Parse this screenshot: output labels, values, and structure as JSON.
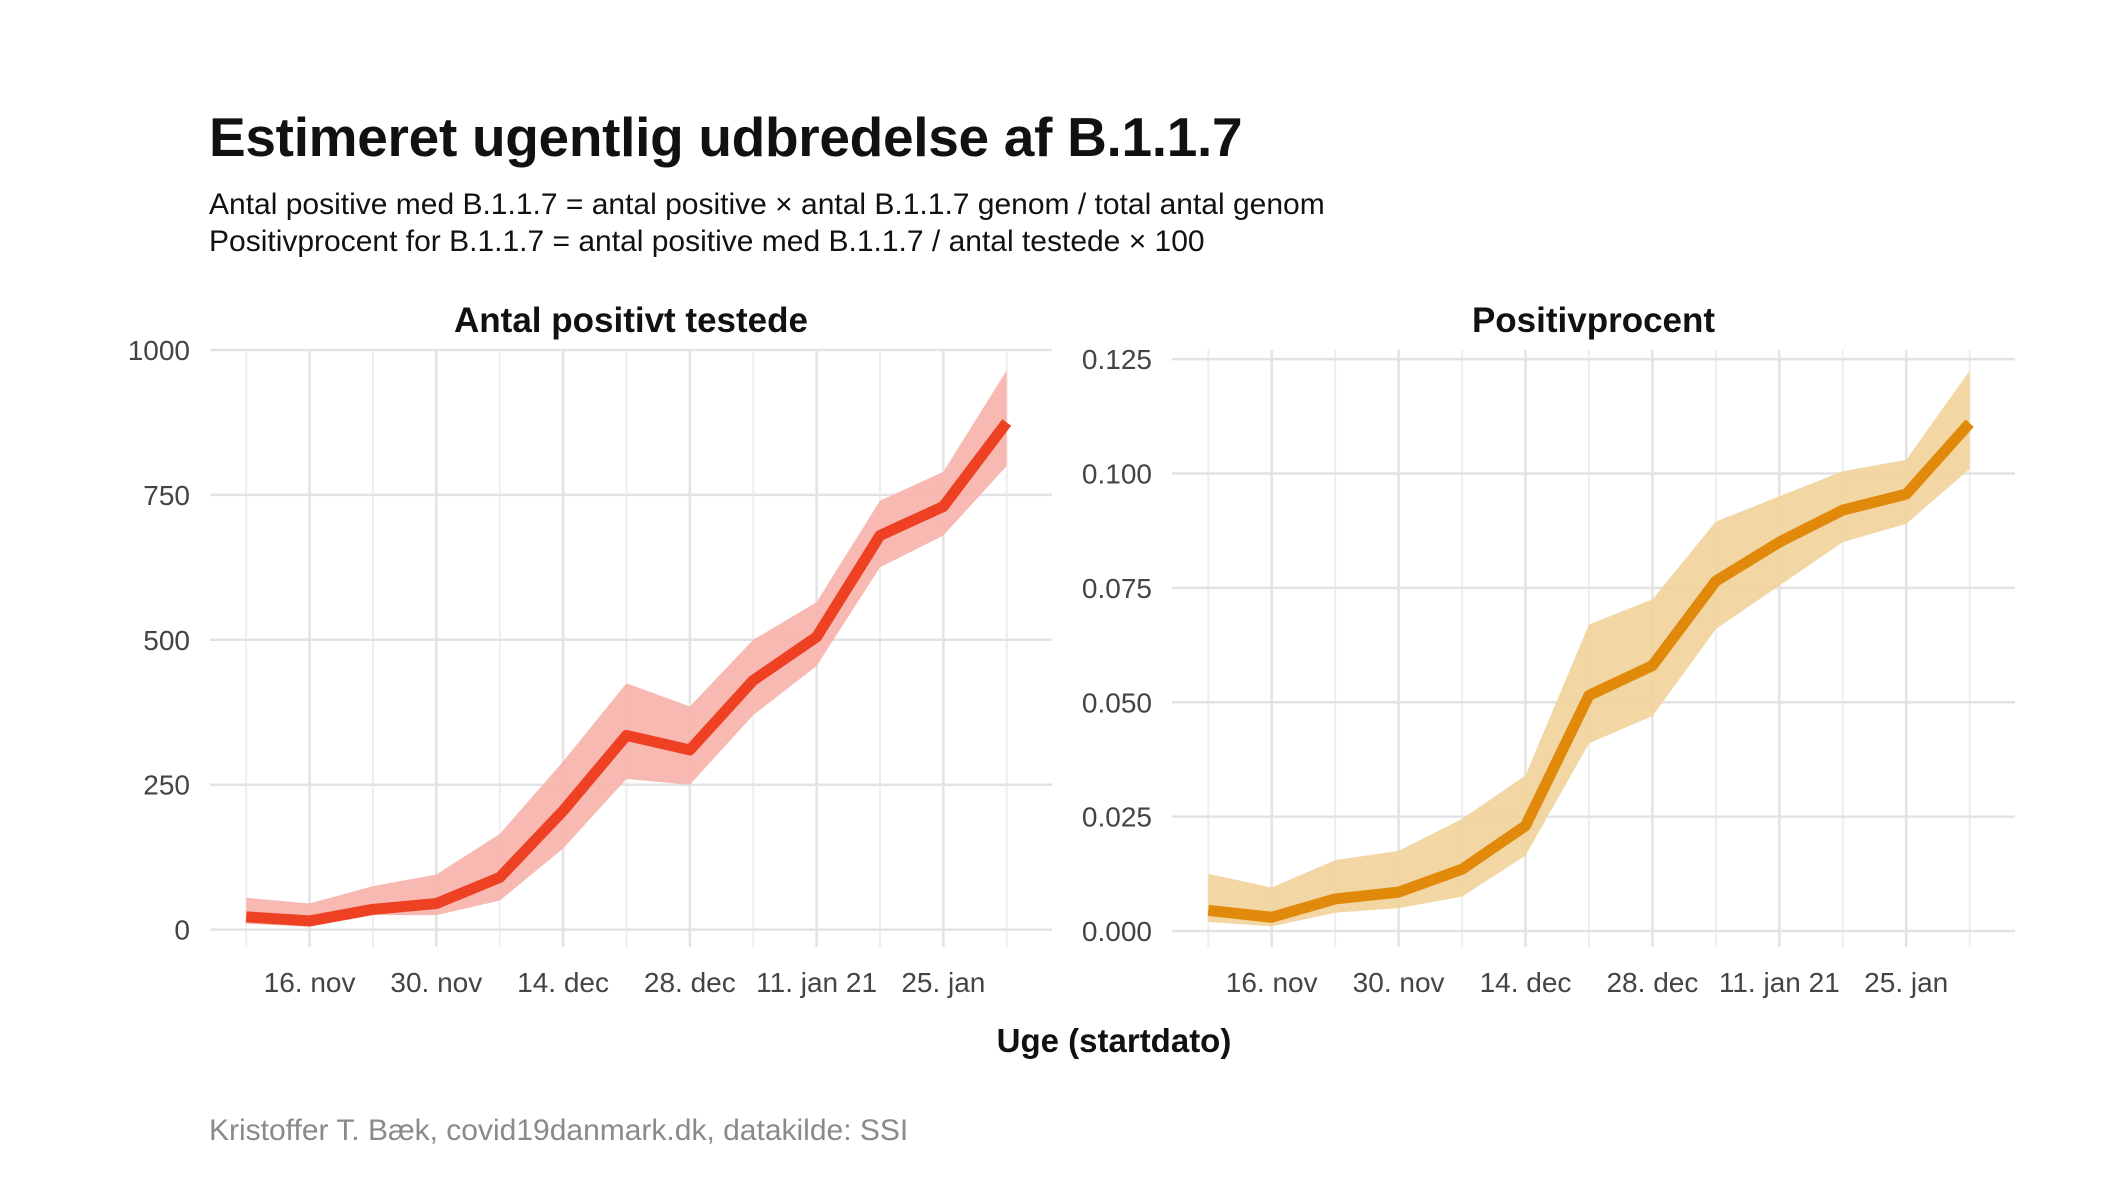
{
  "title": "Estimeret ugentlig udbredelse af B.1.1.7",
  "subtitle_lines": [
    "Antal positive med B.1.1.7 = antal positive × antal B.1.1.7 genom / total antal genom",
    "Positivprocent for B.1.1.7 = antal positive med B.1.1.7 / antal testede × 100"
  ],
  "caption": "Kristoffer T. Bæk, covid19danmark.dk, datakilde: SSI",
  "xlabel": "Uge (startdato)",
  "chart_data": [
    {
      "type": "line",
      "title": "Antal positivt testede",
      "color": "#ee4124",
      "band_color": "#f6b1a8",
      "x": [
        "2020-11-09",
        "2020-11-16",
        "2020-11-23",
        "2020-11-30",
        "2020-12-07",
        "2020-12-14",
        "2020-12-21",
        "2020-12-28",
        "2021-01-04",
        "2021-01-11",
        "2021-01-18",
        "2021-01-25",
        "2021-02-01"
      ],
      "x_ticks": [
        "2020-11-16",
        "2020-11-30",
        "2020-12-14",
        "2020-12-28",
        "2021-01-11",
        "2021-01-25"
      ],
      "x_tick_labels": [
        "16. nov",
        "30. nov",
        "14. dec",
        "28. dec",
        "11. jan 21",
        "25. jan"
      ],
      "y": [
        22,
        15,
        35,
        45,
        90,
        205,
        335,
        310,
        430,
        505,
        680,
        730,
        875
      ],
      "y_lower": [
        10,
        5,
        25,
        25,
        50,
        140,
        260,
        250,
        370,
        455,
        625,
        680,
        800
      ],
      "y_upper": [
        55,
        45,
        75,
        95,
        165,
        290,
        425,
        385,
        500,
        565,
        740,
        790,
        965
      ],
      "ylim": [
        -30,
        1000
      ],
      "y_ticks": [
        0,
        250,
        500,
        750,
        1000
      ],
      "y_tick_labels": [
        "0",
        "250",
        "500",
        "750",
        "1000"
      ],
      "grid": true
    },
    {
      "type": "line",
      "title": "Positivprocent",
      "color": "#e0890b",
      "band_color": "#f1d19a",
      "x": [
        "2020-11-09",
        "2020-11-16",
        "2020-11-23",
        "2020-11-30",
        "2020-12-07",
        "2020-12-14",
        "2020-12-21",
        "2020-12-28",
        "2021-01-04",
        "2021-01-11",
        "2021-01-18",
        "2021-01-25",
        "2021-02-01"
      ],
      "x_ticks": [
        "2020-11-16",
        "2020-11-30",
        "2020-12-14",
        "2020-12-28",
        "2021-01-11",
        "2021-01-25"
      ],
      "x_tick_labels": [
        "16. nov",
        "30. nov",
        "14. dec",
        "28. dec",
        "11. jan 21",
        "25. jan"
      ],
      "y": [
        0.0045,
        0.003,
        0.007,
        0.0085,
        0.0135,
        0.023,
        0.0515,
        0.058,
        0.0765,
        0.085,
        0.092,
        0.0955,
        0.111
      ],
      "y_lower": [
        0.002,
        0.001,
        0.004,
        0.005,
        0.0075,
        0.0165,
        0.041,
        0.047,
        0.066,
        0.0755,
        0.085,
        0.089,
        0.101
      ],
      "y_upper": [
        0.0125,
        0.0095,
        0.0155,
        0.0175,
        0.0245,
        0.034,
        0.067,
        0.0725,
        0.0895,
        0.095,
        0.1005,
        0.103,
        0.1225
      ],
      "ylim": [
        -0.0035,
        0.127
      ],
      "y_ticks": [
        0,
        0.025,
        0.05,
        0.075,
        0.1,
        0.125
      ],
      "y_tick_labels": [
        "0.000",
        "0.025",
        "0.050",
        "0.075",
        "0.100",
        "0.125"
      ],
      "grid": true
    }
  ]
}
